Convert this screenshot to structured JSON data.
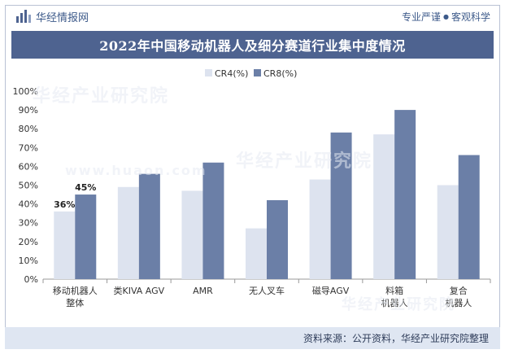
{
  "header": {
    "logo_text": "华经情报网",
    "slogan_left": "专业严谨",
    "slogan_dot": "●",
    "slogan_right": "客观科学"
  },
  "watermark": {
    "text": "华经产业研究院",
    "url": "www.huaon.com"
  },
  "footer": {
    "source": "资料来源：公开资料，华经产业研究院整理"
  },
  "colors": {
    "cr4": "#dde3ef",
    "cr8": "#6b7fa7",
    "title_bg": "#4e6390",
    "axis_text": "#333333"
  },
  "chart_data": {
    "type": "bar",
    "title": "2022年中国移动机器人及细分赛道行业集中度情况",
    "xlabel": "",
    "ylabel": "",
    "ylim": [
      0,
      100
    ],
    "yticks": [
      "0%",
      "10%",
      "20%",
      "30%",
      "40%",
      "50%",
      "60%",
      "70%",
      "80%",
      "90%",
      "100%"
    ],
    "grid": false,
    "legend_position": "top-center",
    "categories": [
      [
        "移动机器人",
        "整体"
      ],
      [
        "类KIVA AGV"
      ],
      [
        "AMR"
      ],
      [
        "无人叉车"
      ],
      [
        "磁导AGV"
      ],
      [
        "料箱",
        "机器人"
      ],
      [
        "复合",
        "机器人"
      ]
    ],
    "series": [
      {
        "name": "CR4(%)",
        "values": [
          36,
          49,
          47,
          27,
          53,
          77,
          50
        ]
      },
      {
        "name": "CR8(%)",
        "values": [
          45,
          56,
          62,
          42,
          78,
          90,
          66
        ]
      }
    ],
    "data_labels": [
      {
        "category_index": 0,
        "series_index": 0,
        "text": "36%"
      },
      {
        "category_index": 0,
        "series_index": 1,
        "text": "45%"
      }
    ]
  }
}
